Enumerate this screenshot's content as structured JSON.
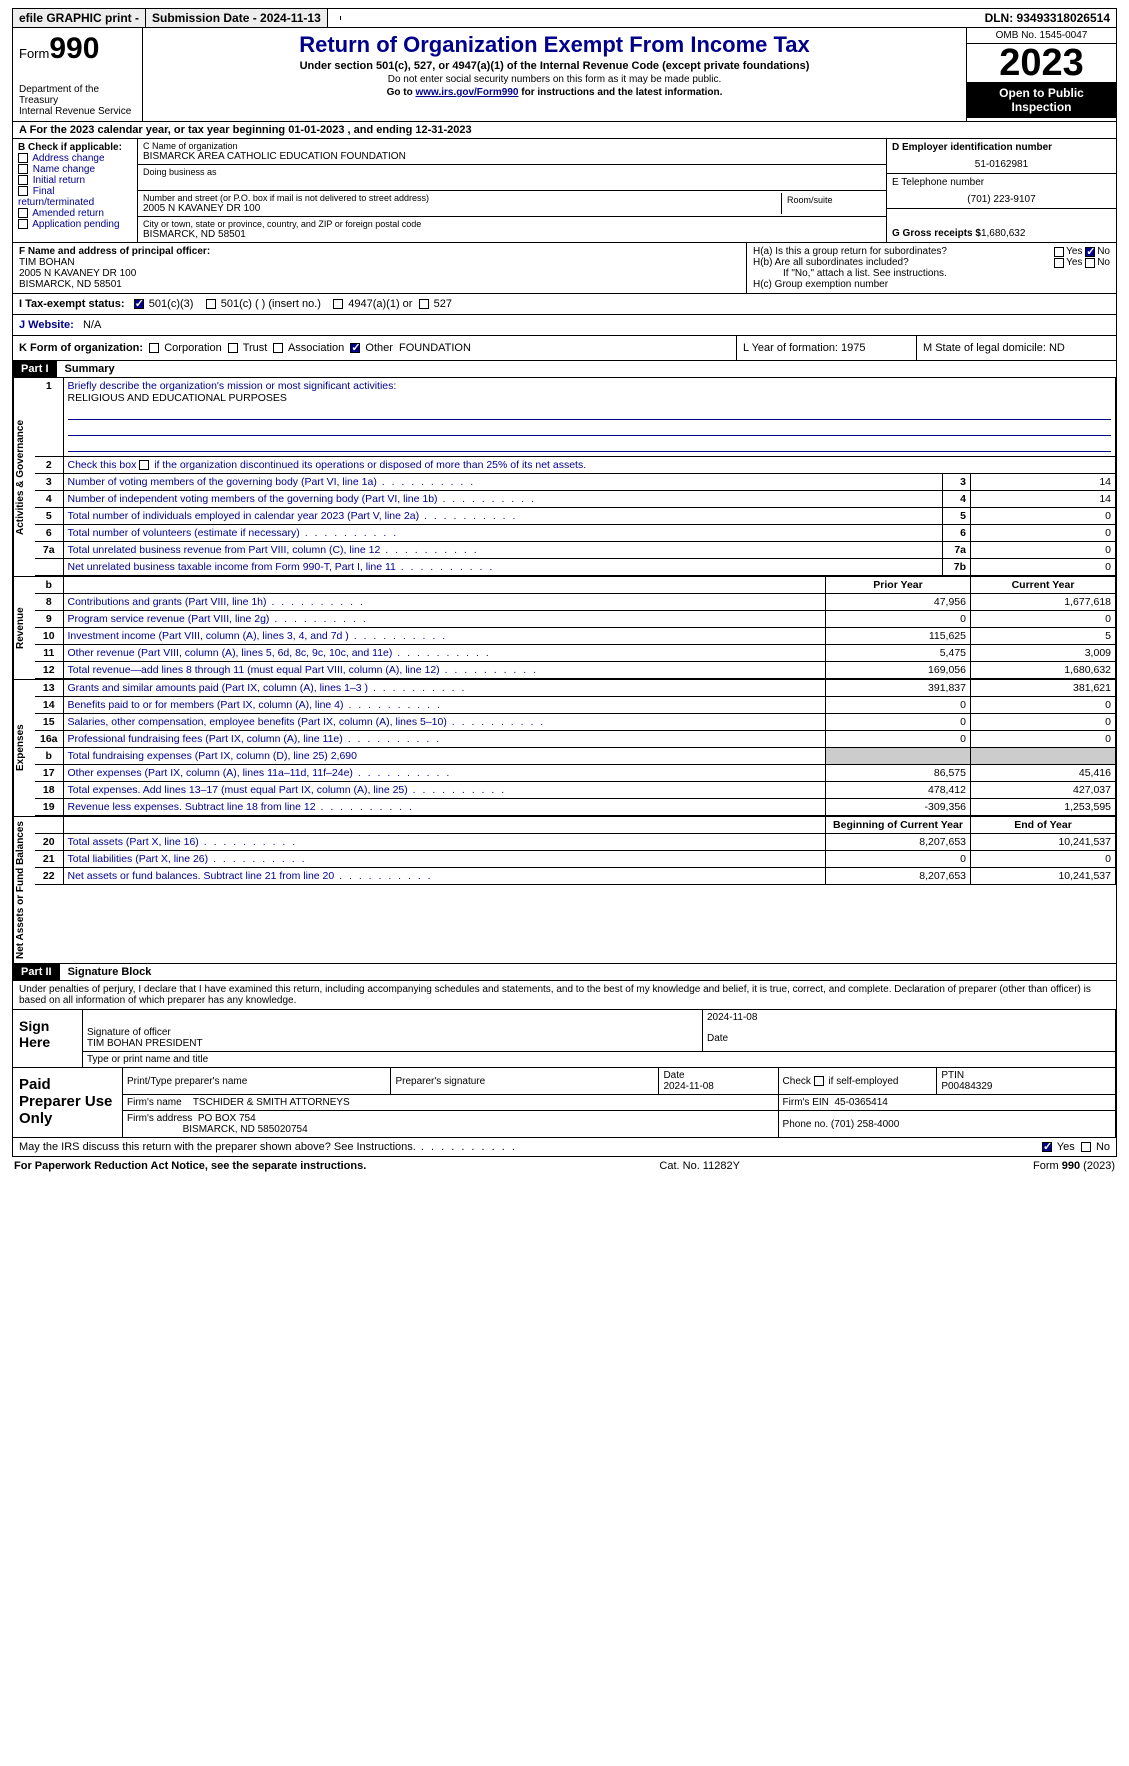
{
  "topbar": {
    "efile": "efile GRAPHIC print -",
    "submission": "Submission Date - 2024-11-13",
    "dln": "DLN: 93493318026514"
  },
  "header": {
    "form_label": "Form",
    "form_num": "990",
    "dept": "Department of the Treasury",
    "irs": "Internal Revenue Service",
    "title": "Return of Organization Exempt From Income Tax",
    "sub": "Under section 501(c), 527, or 4947(a)(1) of the Internal Revenue Code (except private foundations)",
    "ssn": "Do not enter social security numbers on this form as it may be made public.",
    "goto": "Go to ",
    "link": "www.irs.gov/Form990",
    "goto2": " for instructions and the latest information.",
    "omb": "OMB No. 1545-0047",
    "year": "2023",
    "open": "Open to Public Inspection"
  },
  "line_a": "For the 2023 calendar year, or tax year beginning 01-01-2023   , and ending 12-31-2023",
  "box_b": {
    "title": "B Check if applicable:",
    "opts": [
      "Address change",
      "Name change",
      "Initial return",
      "Final return/terminated",
      "Amended return",
      "Application pending"
    ]
  },
  "box_c": {
    "name_lbl": "C Name of organization",
    "name": "BISMARCK AREA CATHOLIC EDUCATION FOUNDATION",
    "dba_lbl": "Doing business as",
    "street_lbl": "Number and street (or P.O. box if mail is not delivered to street address)",
    "street": "2005 N KAVANEY DR 100",
    "room_lbl": "Room/suite",
    "city_lbl": "City or town, state or province, country, and ZIP or foreign postal code",
    "city": "BISMARCK, ND  58501"
  },
  "box_d": {
    "ein_lbl": "D Employer identification number",
    "ein": "51-0162981",
    "tel_lbl": "E Telephone number",
    "tel": "(701) 223-9107",
    "gross_lbl": "G Gross receipts $ ",
    "gross": "1,680,632"
  },
  "box_f": {
    "lbl": "F  Name and address of principal officer:",
    "name": "TIM BOHAN",
    "addr1": "2005 N KAVANEY DR 100",
    "addr2": "BISMARCK, ND  58501"
  },
  "box_h": {
    "ha": "H(a)  Is this a group return for subordinates?",
    "hb": "H(b)  Are all subordinates included?",
    "hb_note": "If \"No,\" attach a list. See instructions.",
    "hc": "H(c)  Group exemption number",
    "yes": "Yes",
    "no": "No"
  },
  "row_i": {
    "lbl": "I   Tax-exempt status:",
    "o1": "501(c)(3)",
    "o2": "501(c) (  ) (insert no.)",
    "o3": "4947(a)(1) or",
    "o4": "527"
  },
  "row_j": {
    "lbl": "J   Website:",
    "val": "N/A"
  },
  "row_k": {
    "lbl": "K Form of organization:",
    "corp": "Corporation",
    "trust": "Trust",
    "assoc": "Association",
    "other": "Other",
    "other_val": "FOUNDATION",
    "l": "L Year of formation: 1975",
    "m": "M State of legal domicile: ND"
  },
  "part1": {
    "hdr": "Part I",
    "title": "Summary"
  },
  "summary": {
    "tabs": [
      "Activities & Governance",
      "Revenue",
      "Expenses",
      "Net Assets or Fund Balances"
    ],
    "l1": "Briefly describe the organization's mission or most significant activities:",
    "mission": "RELIGIOUS AND EDUCATIONAL PURPOSES",
    "l2": "Check this box      if the organization discontinued its operations or disposed of more than 25% of its net assets.",
    "rows_gov": [
      {
        "n": "3",
        "t": "Number of voting members of the governing body (Part VI, line 1a)",
        "box": "3",
        "v": "14"
      },
      {
        "n": "4",
        "t": "Number of independent voting members of the governing body (Part VI, line 1b)",
        "box": "4",
        "v": "14"
      },
      {
        "n": "5",
        "t": "Total number of individuals employed in calendar year 2023 (Part V, line 2a)",
        "box": "5",
        "v": "0"
      },
      {
        "n": "6",
        "t": "Total number of volunteers (estimate if necessary)",
        "box": "6",
        "v": "0"
      },
      {
        "n": "7a",
        "t": "Total unrelated business revenue from Part VIII, column (C), line 12",
        "box": "7a",
        "v": "0"
      },
      {
        "n": "",
        "t": "Net unrelated business taxable income from Form 990-T, Part I, line 11",
        "box": "7b",
        "v": "0"
      }
    ],
    "col_hdrs": {
      "b": "b",
      "prior": "Prior Year",
      "current": "Current Year"
    },
    "rows_rev": [
      {
        "n": "8",
        "t": "Contributions and grants (Part VIII, line 1h)",
        "p": "47,956",
        "c": "1,677,618"
      },
      {
        "n": "9",
        "t": "Program service revenue (Part VIII, line 2g)",
        "p": "0",
        "c": "0"
      },
      {
        "n": "10",
        "t": "Investment income (Part VIII, column (A), lines 3, 4, and 7d )",
        "p": "115,625",
        "c": "5"
      },
      {
        "n": "11",
        "t": "Other revenue (Part VIII, column (A), lines 5, 6d, 8c, 9c, 10c, and 11e)",
        "p": "5,475",
        "c": "3,009"
      },
      {
        "n": "12",
        "t": "Total revenue—add lines 8 through 11 (must equal Part VIII, column (A), line 12)",
        "p": "169,056",
        "c": "1,680,632"
      }
    ],
    "rows_exp": [
      {
        "n": "13",
        "t": "Grants and similar amounts paid (Part IX, column (A), lines 1–3 )",
        "p": "391,837",
        "c": "381,621"
      },
      {
        "n": "14",
        "t": "Benefits paid to or for members (Part IX, column (A), line 4)",
        "p": "0",
        "c": "0"
      },
      {
        "n": "15",
        "t": "Salaries, other compensation, employee benefits (Part IX, column (A), lines 5–10)",
        "p": "0",
        "c": "0"
      },
      {
        "n": "16a",
        "t": "Professional fundraising fees (Part IX, column (A), line 11e)",
        "p": "0",
        "c": "0"
      },
      {
        "n": "b",
        "t": "Total fundraising expenses (Part IX, column (D), line 25) 2,690",
        "p": "",
        "c": "",
        "shade": true
      },
      {
        "n": "17",
        "t": "Other expenses (Part IX, column (A), lines 11a–11d, 11f–24e)",
        "p": "86,575",
        "c": "45,416"
      },
      {
        "n": "18",
        "t": "Total expenses. Add lines 13–17 (must equal Part IX, column (A), line 25)",
        "p": "478,412",
        "c": "427,037"
      },
      {
        "n": "19",
        "t": "Revenue less expenses. Subtract line 18 from line 12",
        "p": "-309,356",
        "c": "1,253,595"
      }
    ],
    "col_hdrs2": {
      "beg": "Beginning of Current Year",
      "end": "End of Year"
    },
    "rows_net": [
      {
        "n": "20",
        "t": "Total assets (Part X, line 16)",
        "p": "8,207,653",
        "c": "10,241,537"
      },
      {
        "n": "21",
        "t": "Total liabilities (Part X, line 26)",
        "p": "0",
        "c": "0"
      },
      {
        "n": "22",
        "t": "Net assets or fund balances. Subtract line 21 from line 20",
        "p": "8,207,653",
        "c": "10,241,537"
      }
    ]
  },
  "part2": {
    "hdr": "Part II",
    "title": "Signature Block"
  },
  "perjury": "Under penalties of perjury, I declare that I have examined this return, including accompanying schedules and statements, and to the best of my knowledge and belief, it is true, correct, and complete. Declaration of preparer (other than officer) is based on all information of which preparer has any knowledge.",
  "sign": {
    "lbl": "Sign Here",
    "date": "2024-11-08",
    "sig_lbl": "Signature of officer",
    "name": "TIM BOHAN PRESIDENT",
    "type_lbl": "Type or print name and title",
    "date_lbl": "Date"
  },
  "prep": {
    "lbl": "Paid Preparer Use Only",
    "h1": "Print/Type preparer's name",
    "h2": "Preparer's signature",
    "h3": "Date",
    "date": "2024-11-08",
    "h4": "Check       if self-employed",
    "h5": "PTIN",
    "ptin": "P00484329",
    "firm_lbl": "Firm's name",
    "firm": "TSCHIDER & SMITH ATTORNEYS",
    "ein_lbl": "Firm's EIN",
    "ein": "45-0365414",
    "addr_lbl": "Firm's address",
    "addr1": "PO BOX 754",
    "addr2": "BISMARCK, ND  585020754",
    "phone_lbl": "Phone no.",
    "phone": "(701) 258-4000"
  },
  "discuss": {
    "text": "May the IRS discuss this return with the preparer shown above? See Instructions.",
    "yes": "Yes",
    "no": "No"
  },
  "footer": {
    "left": "For Paperwork Reduction Act Notice, see the separate instructions.",
    "mid": "Cat. No. 11282Y",
    "right": "Form 990 (2023)"
  }
}
